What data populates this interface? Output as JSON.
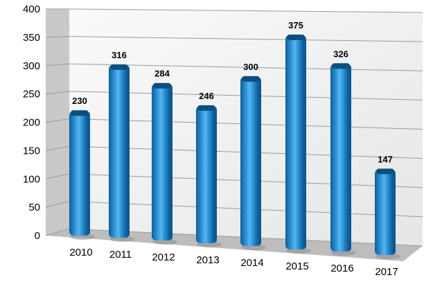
{
  "chart_data": {
    "type": "bar",
    "categories": [
      "2010",
      "2011",
      "2012",
      "2013",
      "2014",
      "2015",
      "2016",
      "2017"
    ],
    "values": [
      230,
      316,
      284,
      246,
      300,
      375,
      326,
      147
    ],
    "data_labels": [
      "230",
      "316",
      "284",
      "246",
      "300",
      "375",
      "326",
      "147"
    ],
    "ylim": [
      0,
      400
    ],
    "yticks": [
      0,
      50,
      100,
      150,
      200,
      250,
      300,
      350,
      400
    ],
    "ytick_labels": [
      "0",
      "50",
      "100",
      "150",
      "200",
      "250",
      "300",
      "350",
      "400"
    ],
    "grid": true,
    "style": "3d-perspective-bars",
    "colors": {
      "bar_front": "#1a7fc4",
      "bar_highlight": "#4eb0ec",
      "bar_shadow": "#0d5a92",
      "bar_top": "#0b4f80",
      "wall_left": "#c9c9c9",
      "wall_back": "#f4f4f4",
      "floor": "#bdbdbd",
      "gridline": "#9a9a9a",
      "text": "#000000"
    }
  }
}
